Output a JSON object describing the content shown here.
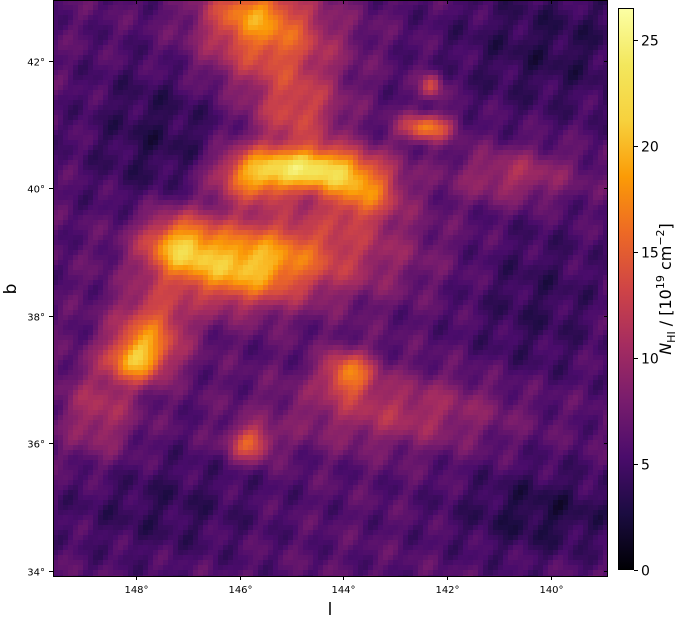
{
  "chart_data": {
    "type": "heatmap",
    "xlabel": "l",
    "ylabel": "b",
    "xlim": [
      149.6,
      138.9
    ],
    "ylim": [
      33.92,
      42.95
    ],
    "x_ticks": [
      {
        "value": 148,
        "label": "148°"
      },
      {
        "value": 146,
        "label": "146°"
      },
      {
        "value": 144,
        "label": "144°"
      },
      {
        "value": 142,
        "label": "142°"
      },
      {
        "value": 140,
        "label": "140°"
      }
    ],
    "y_ticks": [
      {
        "value": 34,
        "label": "34°"
      },
      {
        "value": 36,
        "label": "36°"
      },
      {
        "value": 38,
        "label": "38°"
      },
      {
        "value": 40,
        "label": "40°"
      },
      {
        "value": 42,
        "label": "42°"
      }
    ],
    "colorbar": {
      "colormap": "inferno",
      "label": "N_HI / [10^19 cm^-2]",
      "range": [
        0,
        26.5
      ],
      "ticks": [
        {
          "value": 0,
          "label": "0"
        },
        {
          "value": 5,
          "label": "5"
        },
        {
          "value": 10,
          "label": "10"
        },
        {
          "value": 15,
          "label": "15"
        },
        {
          "value": 20,
          "label": "20"
        },
        {
          "value": 25,
          "label": "25"
        }
      ]
    },
    "background_level": 6,
    "features": [
      {
        "name": "top-stream",
        "l": 145.4,
        "b": 42.3,
        "sigma_l": 0.9,
        "sigma_b": 0.5,
        "amp": 9
      },
      {
        "name": "top-stream-upper",
        "l": 145.8,
        "b": 42.8,
        "sigma_l": 0.6,
        "sigma_b": 0.3,
        "amp": 7
      },
      {
        "name": "peak-ridge",
        "l": 144.6,
        "b": 40.3,
        "sigma_l": 0.8,
        "sigma_b": 0.25,
        "amp": 16
      },
      {
        "name": "central-ridge-west",
        "l": 145.8,
        "b": 40.2,
        "sigma_l": 0.5,
        "sigma_b": 0.3,
        "amp": 9
      },
      {
        "name": "central-ridge-east",
        "l": 143.6,
        "b": 39.9,
        "sigma_l": 0.5,
        "sigma_b": 0.3,
        "amp": 9
      },
      {
        "name": "mid-filament",
        "l": 145.0,
        "b": 39.0,
        "sigma_l": 1.5,
        "sigma_b": 0.5,
        "amp": 8
      },
      {
        "name": "western-lobe",
        "l": 147.2,
        "b": 39.1,
        "sigma_l": 0.5,
        "sigma_b": 0.35,
        "amp": 11
      },
      {
        "name": "filament-center",
        "l": 146.0,
        "b": 38.7,
        "sigma_l": 0.8,
        "sigma_b": 0.4,
        "amp": 9
      },
      {
        "name": "lower-lobe",
        "l": 148.0,
        "b": 37.3,
        "sigma_l": 0.4,
        "sigma_b": 0.25,
        "amp": 11
      },
      {
        "name": "lower-arm",
        "l": 147.7,
        "b": 37.8,
        "sigma_l": 0.5,
        "sigma_b": 0.4,
        "amp": 9
      },
      {
        "name": "east-clump",
        "l": 143.9,
        "b": 37.1,
        "sigma_l": 0.35,
        "sigma_b": 0.25,
        "amp": 10
      },
      {
        "name": "south-knot",
        "l": 145.8,
        "b": 36.0,
        "sigma_l": 0.3,
        "sigma_b": 0.2,
        "amp": 9
      },
      {
        "name": "arc",
        "l": 142.4,
        "b": 40.95,
        "sigma_l": 0.35,
        "sigma_b": 0.15,
        "amp": 11
      },
      {
        "name": "arc-tip",
        "l": 142.3,
        "b": 41.6,
        "sigma_l": 0.15,
        "sigma_b": 0.15,
        "amp": 8
      },
      {
        "name": "north-middle",
        "l": 144.9,
        "b": 41.2,
        "sigma_l": 0.6,
        "sigma_b": 0.4,
        "amp": 7
      },
      {
        "name": "east-streak",
        "l": 140.7,
        "b": 40.2,
        "sigma_l": 0.8,
        "sigma_b": 0.3,
        "amp": 5
      },
      {
        "name": "south-arm",
        "l": 143.0,
        "b": 36.5,
        "sigma_l": 1.5,
        "sigma_b": 0.4,
        "amp": 5
      },
      {
        "name": "west-arm",
        "l": 148.7,
        "b": 36.5,
        "sigma_l": 0.5,
        "sigma_b": 0.5,
        "amp": 5
      },
      {
        "name": "void-northwest",
        "l": 147.6,
        "b": 40.8,
        "sigma_l": 1.0,
        "sigma_b": 0.9,
        "amp": -2.5
      },
      {
        "name": "void-east",
        "l": 140.3,
        "b": 38.2,
        "sigma_l": 1.0,
        "sigma_b": 1.0,
        "amp": -2
      },
      {
        "name": "void-southeast",
        "l": 140.2,
        "b": 34.9,
        "sigma_l": 1.2,
        "sigma_b": 0.5,
        "amp": -3
      },
      {
        "name": "void-southwest",
        "l": 147.5,
        "b": 35.0,
        "sigma_l": 1.4,
        "sigma_b": 0.6,
        "amp": -2
      },
      {
        "name": "void-northeast",
        "l": 140.0,
        "b": 42.2,
        "sigma_l": 1.5,
        "sigma_b": 0.8,
        "amp": -2.5
      }
    ]
  }
}
